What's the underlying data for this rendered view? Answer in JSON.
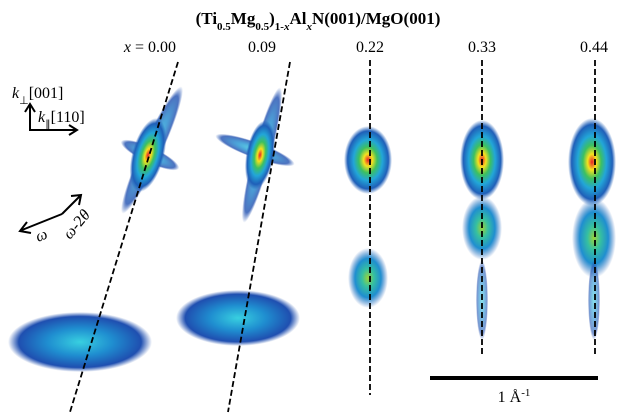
{
  "title": [
    {
      "t": "(Ti"
    },
    {
      "t": "0.5",
      "sub": true
    },
    {
      "t": "Mg"
    },
    {
      "t": "0.5",
      "sub": true
    },
    {
      "t": ")"
    },
    {
      "t": "1-",
      "sub": true
    },
    {
      "t": "x",
      "sub": true,
      "italic": true
    },
    {
      "t": "Al"
    },
    {
      "t": "x",
      "sub": true,
      "italic": true
    },
    {
      "t": "N(001)/MgO(001)"
    }
  ],
  "panels": [
    {
      "label": [
        {
          "t": "x",
          "italic": true
        },
        {
          "t": " = 0.00"
        }
      ]
    },
    {
      "label": [
        {
          "t": "0.09"
        }
      ]
    },
    {
      "label": [
        {
          "t": "0.22"
        }
      ]
    },
    {
      "label": [
        {
          "t": "0.33"
        }
      ]
    },
    {
      "label": [
        {
          "t": "0.44"
        }
      ]
    }
  ],
  "axes": {
    "k_perp": [
      {
        "t": "k",
        "italic": true
      },
      {
        "t": "⊥",
        "sub": true
      },
      {
        "t": "[001]"
      }
    ],
    "k_par": [
      {
        "t": "k",
        "italic": true
      },
      {
        "t": "∥",
        "sub": true
      },
      {
        "t": "[110]"
      }
    ],
    "omega": [
      {
        "t": "ω",
        "italic": true
      }
    ],
    "omega_2theta": [
      {
        "t": "ω",
        "italic": true
      },
      {
        "t": "-2"
      },
      {
        "t": "θ",
        "italic": true
      }
    ]
  },
  "scale_bar": [
    {
      "t": "1 Å"
    },
    {
      "t": "-1",
      "sup": true
    }
  ]
}
